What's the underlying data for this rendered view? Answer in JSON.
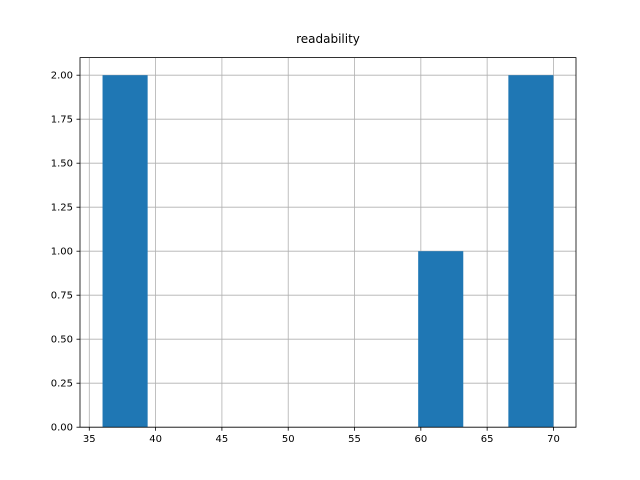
{
  "chart_data": {
    "type": "histogram",
    "title": "readability",
    "bins": [
      36,
      39.4,
      42.8,
      46.2,
      49.6,
      53,
      56.4,
      59.8,
      63.2,
      66.6,
      70
    ],
    "counts": [
      2,
      0,
      0,
      0,
      0,
      0,
      0,
      1,
      0,
      2
    ],
    "color": "#1f77b4",
    "xlim": [
      34.3,
      71.7
    ],
    "xticks": [
      35,
      40,
      45,
      50,
      55,
      60,
      65,
      70
    ],
    "ylim": [
      0,
      2.1
    ],
    "yticks": [
      {
        "value": 0,
        "label": "0.00"
      },
      {
        "value": 0.25,
        "label": "0.25"
      },
      {
        "value": 0.5,
        "label": "0.50"
      },
      {
        "value": 0.75,
        "label": "0.75"
      },
      {
        "value": 1,
        "label": "1.00"
      },
      {
        "value": 1.25,
        "label": "1.25"
      },
      {
        "value": 1.5,
        "label": "1.50"
      },
      {
        "value": 1.75,
        "label": "1.75"
      },
      {
        "value": 2,
        "label": "2.00"
      }
    ],
    "grid": true
  }
}
